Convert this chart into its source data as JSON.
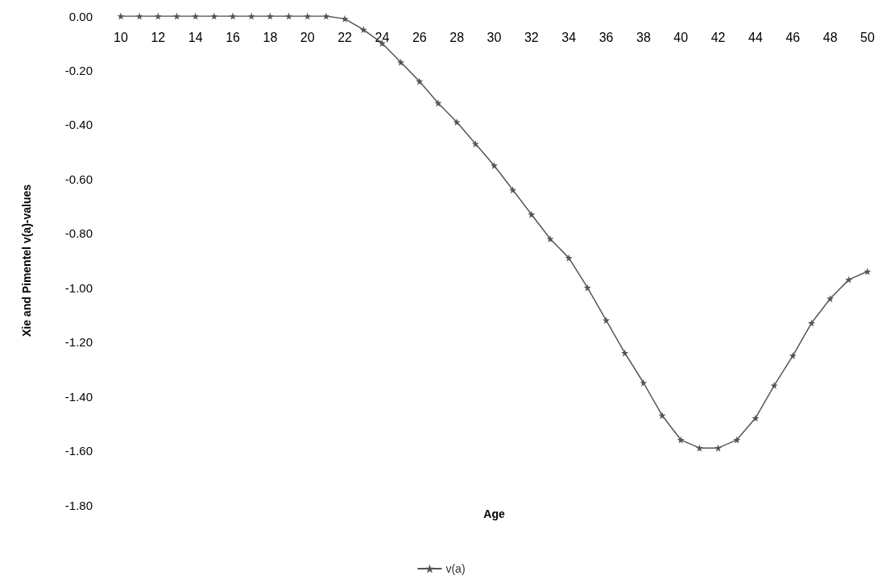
{
  "chart_data": {
    "type": "line",
    "xlabel": "Age",
    "ylabel": "Xie and Pimentel v(a)-values",
    "x": [
      10,
      11,
      12,
      13,
      14,
      15,
      16,
      17,
      18,
      19,
      20,
      21,
      22,
      23,
      24,
      25,
      26,
      27,
      28,
      29,
      30,
      31,
      32,
      33,
      34,
      35,
      36,
      37,
      38,
      39,
      40,
      41,
      42,
      43,
      44,
      45,
      46,
      47,
      48,
      49,
      50
    ],
    "series": [
      {
        "name": "v(a)",
        "color": "#555555",
        "values": [
          0,
          0,
          0,
          0,
          0,
          0,
          0,
          0,
          0,
          0,
          0,
          0,
          -0.01,
          -0.05,
          -0.1,
          -0.17,
          -0.24,
          -0.32,
          -0.39,
          -0.47,
          -0.55,
          -0.64,
          -0.73,
          -0.82,
          -0.89,
          -1.0,
          -1.12,
          -1.24,
          -1.35,
          -1.47,
          -1.56,
          -1.59,
          -1.59,
          -1.56,
          -1.48,
          -1.36,
          -1.25,
          -1.13,
          -1.04,
          -0.97,
          -0.94
        ]
      }
    ],
    "xlim": [
      10,
      50
    ],
    "xticks": [
      10,
      12,
      14,
      16,
      18,
      20,
      22,
      24,
      26,
      28,
      30,
      32,
      34,
      36,
      38,
      40,
      42,
      44,
      46,
      48,
      50
    ],
    "ylim": [
      -1.8,
      0
    ],
    "yticks": [
      {
        "value": 0,
        "label": "0.00"
      },
      {
        "value": -0.2,
        "label": "-0.20"
      },
      {
        "value": -0.4,
        "label": "-0.40"
      },
      {
        "value": -0.6,
        "label": "-0.60"
      },
      {
        "value": -0.8,
        "label": "-0.80"
      },
      {
        "value": -1.0,
        "label": "-1.00"
      },
      {
        "value": -1.2,
        "label": "-1.20"
      },
      {
        "value": -1.4,
        "label": "-1.40"
      },
      {
        "value": -1.6,
        "label": "-1.60"
      },
      {
        "value": -1.8,
        "label": "-1.80"
      }
    ],
    "grid": false,
    "legend": "bottom",
    "marker": "star",
    "line_style": "solid"
  }
}
